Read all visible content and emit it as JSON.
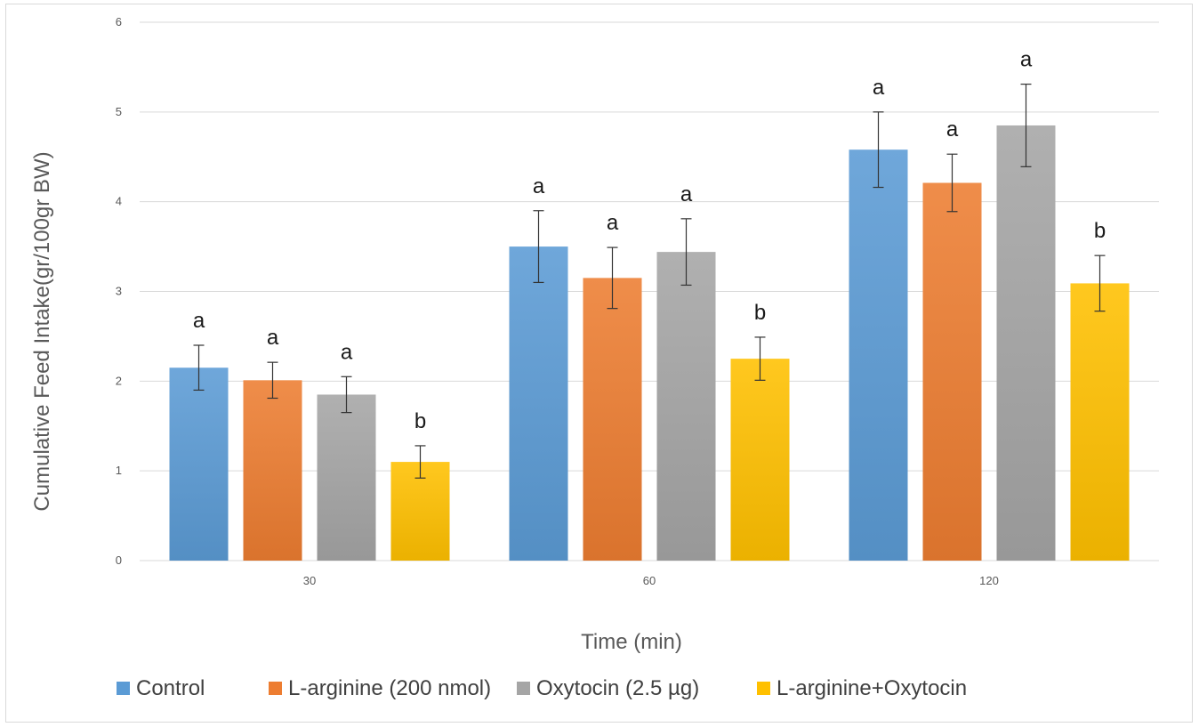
{
  "chart_data": {
    "type": "bar",
    "title": "",
    "xlabel": "Time (min)",
    "ylabel": "Cumulative Feed Intake(gr/100gr BW)",
    "ylim": [
      0,
      6
    ],
    "yticks": [
      "0",
      "1",
      "2",
      "3",
      "4",
      "5",
      "6"
    ],
    "categories": [
      "30",
      "60",
      "120"
    ],
    "grid": true,
    "legend_position": "bottom",
    "series": [
      {
        "name": "Control",
        "color": "#5b9bd5",
        "values": [
          2.15,
          3.5,
          4.58
        ],
        "errors": [
          0.25,
          0.4,
          0.42
        ],
        "significance": [
          "a",
          "a",
          "a"
        ]
      },
      {
        "name": "L-arginine (200 nmol)",
        "color": "#ed7d31",
        "values": [
          2.01,
          3.15,
          4.21
        ],
        "errors": [
          0.2,
          0.34,
          0.32
        ],
        "significance": [
          "a",
          "a",
          "a"
        ]
      },
      {
        "name": "Oxytocin (2.5 µg)",
        "color": "#a5a5a5",
        "values": [
          1.85,
          3.44,
          4.85
        ],
        "errors": [
          0.2,
          0.37,
          0.46
        ],
        "significance": [
          "a",
          "a",
          "a"
        ]
      },
      {
        "name": "L-arginine+Oxytocin",
        "color": "#ffc000",
        "values": [
          1.1,
          2.25,
          3.09
        ],
        "errors": [
          0.18,
          0.24,
          0.31
        ],
        "significance": [
          "b",
          "b",
          "b"
        ]
      }
    ]
  }
}
